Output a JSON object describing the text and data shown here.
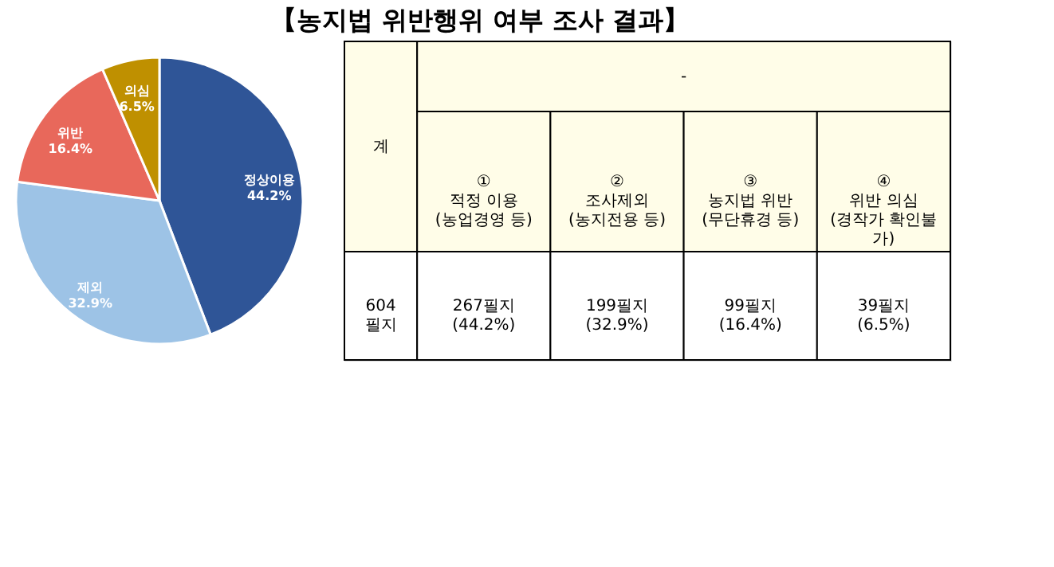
{
  "chart_data": [
    {
      "type": "pie",
      "title": "【농지법 위반행위 여부 조사 결과】",
      "categories": [
        "정상이용",
        "제외",
        "위반",
        "의심"
      ],
      "values": [
        44.2,
        32.9,
        16.4,
        6.5
      ],
      "colors": [
        "#2f5597",
        "#9dc3e6",
        "#e8685b",
        "#bf9000"
      ],
      "value_labels": [
        "44.2%",
        "32.9%",
        "16.4%",
        "6.5%"
      ],
      "legend": false
    },
    {
      "type": "other",
      "annotations": [
        "계",
        "-",
        "①\n\n적정 이용\n(농업경영 등)",
        "②\n\n조사제외\n(농지전용 등)",
        "③\n\n농지법 위반\n(무단휴경 등)",
        "④\n\n위반 의심\n(경작가 확인불\n가)",
        "604\n필지",
        "267필지\n(44.2%)",
        "199필지\n(32.9%)",
        "99필지\n(16.4%)",
        "39필지\n(6.5%)"
      ]
    }
  ]
}
